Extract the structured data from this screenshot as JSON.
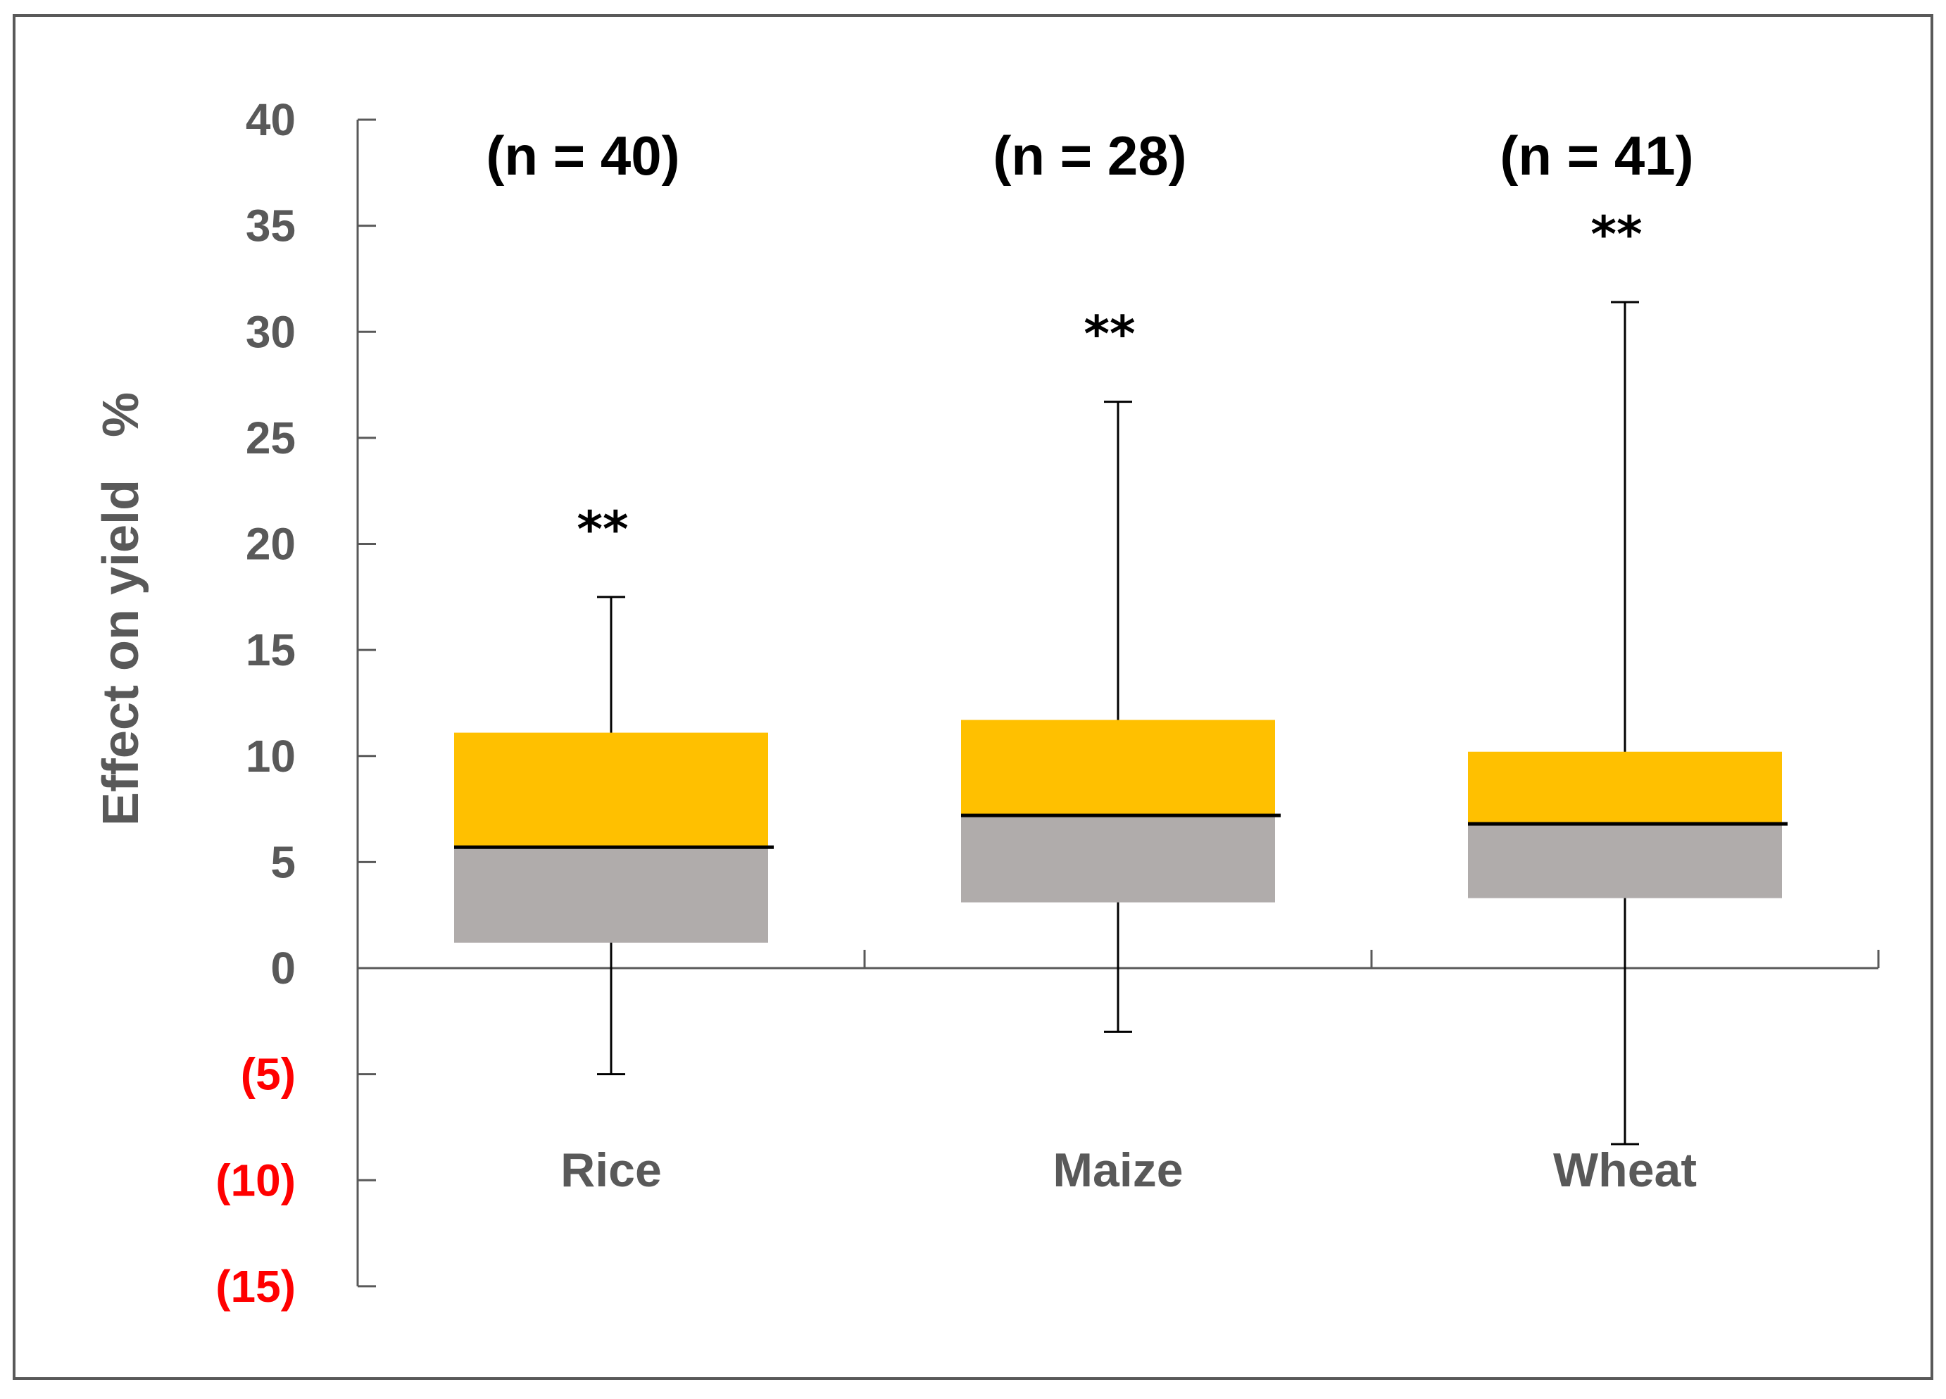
{
  "chart_data": {
    "type": "box",
    "title": "",
    "ylabel": "Effect on yield   %",
    "xlabel": "",
    "ylim": [
      -15,
      40
    ],
    "yticks": [
      40,
      35,
      30,
      25,
      20,
      15,
      10,
      5,
      0,
      -5,
      -10,
      -15
    ],
    "ytick_labels": [
      "40",
      "35",
      "30",
      "25",
      "20",
      "15",
      "10",
      "5",
      "0",
      "(5)",
      "(10)",
      "(15)"
    ],
    "categories": [
      "Rice",
      "Maize",
      "Wheat"
    ],
    "series": [
      {
        "name": "Rice",
        "n_label": "(n = 40)",
        "significance": "**",
        "whisker_low": -5,
        "q1": 1.2,
        "median": 5.7,
        "q3": 11.1,
        "whisker_high": 17.5
      },
      {
        "name": "Maize",
        "n_label": "(n = 28)",
        "significance": "**",
        "whisker_low": -3,
        "q1": 3.1,
        "median": 7.2,
        "q3": 11.7,
        "whisker_high": 26.7
      },
      {
        "name": "Wheat",
        "n_label": "(n = 41)",
        "significance": "**",
        "whisker_low": -8.3,
        "q1": 3.3,
        "median": 6.8,
        "q3": 10.2,
        "whisker_high": 31.4
      }
    ],
    "colors": {
      "upper_box": "#ffc000",
      "lower_box": "#b0acab",
      "axis": "#595959",
      "positive_tick_label": "#595959",
      "negative_tick_label": "#ff0000"
    }
  }
}
